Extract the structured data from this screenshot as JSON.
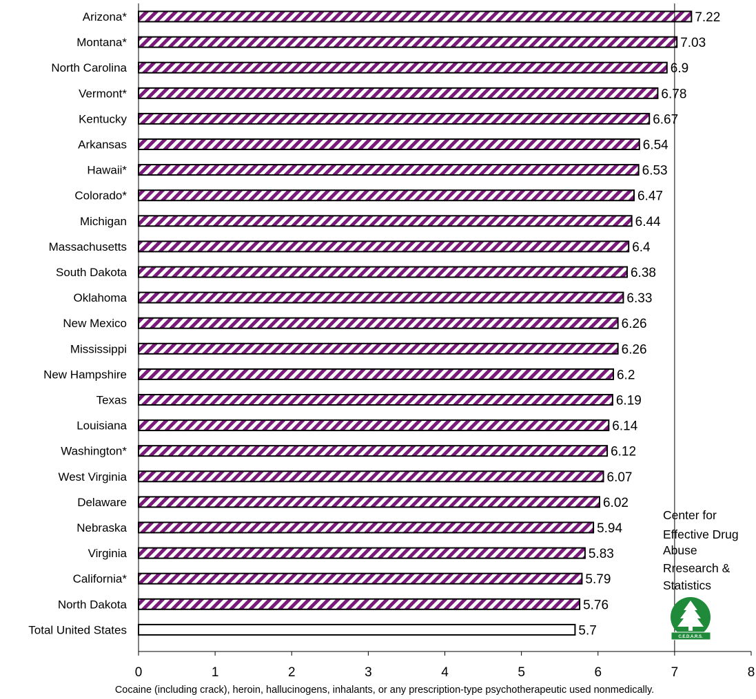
{
  "chart_data": {
    "type": "bar",
    "orientation": "horizontal",
    "categories": [
      "Arizona*",
      "Montana*",
      "North Carolina",
      "Vermont*",
      "Kentucky",
      "Arkansas",
      "Hawaii*",
      "Colorado*",
      "Michigan",
      "Massachusetts",
      "South Dakota",
      "Oklahoma",
      "New Mexico",
      "Mississippi",
      "New Hampshire",
      "Texas",
      "Louisiana",
      "Washington*",
      "West Virginia",
      "Delaware",
      "Nebraska",
      "Virginia",
      "California*",
      "North Dakota",
      "Total United States"
    ],
    "values": [
      7.22,
      7.03,
      6.9,
      6.78,
      6.67,
      6.54,
      6.53,
      6.47,
      6.44,
      6.4,
      6.38,
      6.33,
      6.26,
      6.26,
      6.2,
      6.19,
      6.14,
      6.12,
      6.07,
      6.02,
      5.94,
      5.83,
      5.79,
      5.76,
      5.7
    ],
    "data_labels": [
      "7.22",
      "7.03",
      "6.9",
      "6.78",
      "6.67",
      "6.54",
      "6.53",
      "6.47",
      "6.44",
      "6.4",
      "6.38",
      "6.33",
      "6.26",
      "6.26",
      "6.2",
      "6.19",
      "6.14",
      "6.12",
      "6.07",
      "6.02",
      "5.94",
      "5.83",
      "5.79",
      "5.76",
      "5.7"
    ],
    "xlabel": "Cocaine (including crack), heroin, hallucinogens, inhalants, or any prescription-type psychotherapeutic used nonmedically.",
    "xlim": [
      0,
      8
    ],
    "xticks": [
      "0",
      "1",
      "2",
      "3",
      "4",
      "5",
      "6",
      "7",
      "8"
    ],
    "reference_line_x": 7,
    "grid": false,
    "colors": {
      "bar_stripe": "#7a1a7a",
      "bar_fill": "#ffffff",
      "bar_outline": "#000000",
      "total_bar_fill": "#ffffff",
      "logo_green": "#1e8a3a"
    }
  },
  "logo": {
    "text_lines": [
      "Center for",
      "Effective Drug",
      "Abuse",
      "Rresearch &",
      "Statistics"
    ],
    "mark_text": "C.E.D.A.R.S."
  }
}
